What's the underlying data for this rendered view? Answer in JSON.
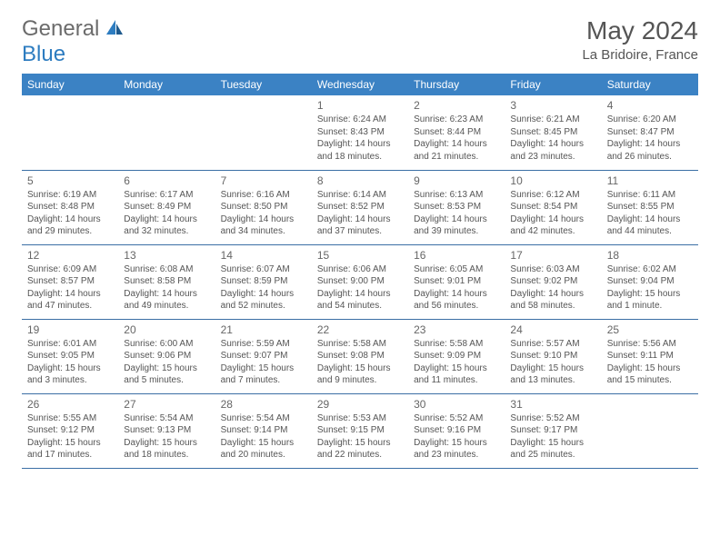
{
  "brand": {
    "text1": "General",
    "text2": "Blue"
  },
  "title": {
    "month": "May 2024",
    "location": "La Bridoire, France"
  },
  "colors": {
    "header_bg": "#3b82c4",
    "header_text": "#ffffff",
    "row_border": "#3b6fa5",
    "text_muted": "#555555",
    "logo_gray": "#6b6b6b",
    "logo_blue": "#2d7cc0",
    "page_bg": "#ffffff"
  },
  "weekdays": [
    "Sunday",
    "Monday",
    "Tuesday",
    "Wednesday",
    "Thursday",
    "Friday",
    "Saturday"
  ],
  "weeks": [
    [
      null,
      null,
      null,
      {
        "d": "1",
        "sr": "6:24 AM",
        "ss": "8:43 PM",
        "dl": "14 hours and 18 minutes."
      },
      {
        "d": "2",
        "sr": "6:23 AM",
        "ss": "8:44 PM",
        "dl": "14 hours and 21 minutes."
      },
      {
        "d": "3",
        "sr": "6:21 AM",
        "ss": "8:45 PM",
        "dl": "14 hours and 23 minutes."
      },
      {
        "d": "4",
        "sr": "6:20 AM",
        "ss": "8:47 PM",
        "dl": "14 hours and 26 minutes."
      }
    ],
    [
      {
        "d": "5",
        "sr": "6:19 AM",
        "ss": "8:48 PM",
        "dl": "14 hours and 29 minutes."
      },
      {
        "d": "6",
        "sr": "6:17 AM",
        "ss": "8:49 PM",
        "dl": "14 hours and 32 minutes."
      },
      {
        "d": "7",
        "sr": "6:16 AM",
        "ss": "8:50 PM",
        "dl": "14 hours and 34 minutes."
      },
      {
        "d": "8",
        "sr": "6:14 AM",
        "ss": "8:52 PM",
        "dl": "14 hours and 37 minutes."
      },
      {
        "d": "9",
        "sr": "6:13 AM",
        "ss": "8:53 PM",
        "dl": "14 hours and 39 minutes."
      },
      {
        "d": "10",
        "sr": "6:12 AM",
        "ss": "8:54 PM",
        "dl": "14 hours and 42 minutes."
      },
      {
        "d": "11",
        "sr": "6:11 AM",
        "ss": "8:55 PM",
        "dl": "14 hours and 44 minutes."
      }
    ],
    [
      {
        "d": "12",
        "sr": "6:09 AM",
        "ss": "8:57 PM",
        "dl": "14 hours and 47 minutes."
      },
      {
        "d": "13",
        "sr": "6:08 AM",
        "ss": "8:58 PM",
        "dl": "14 hours and 49 minutes."
      },
      {
        "d": "14",
        "sr": "6:07 AM",
        "ss": "8:59 PM",
        "dl": "14 hours and 52 minutes."
      },
      {
        "d": "15",
        "sr": "6:06 AM",
        "ss": "9:00 PM",
        "dl": "14 hours and 54 minutes."
      },
      {
        "d": "16",
        "sr": "6:05 AM",
        "ss": "9:01 PM",
        "dl": "14 hours and 56 minutes."
      },
      {
        "d": "17",
        "sr": "6:03 AM",
        "ss": "9:02 PM",
        "dl": "14 hours and 58 minutes."
      },
      {
        "d": "18",
        "sr": "6:02 AM",
        "ss": "9:04 PM",
        "dl": "15 hours and 1 minute."
      }
    ],
    [
      {
        "d": "19",
        "sr": "6:01 AM",
        "ss": "9:05 PM",
        "dl": "15 hours and 3 minutes."
      },
      {
        "d": "20",
        "sr": "6:00 AM",
        "ss": "9:06 PM",
        "dl": "15 hours and 5 minutes."
      },
      {
        "d": "21",
        "sr": "5:59 AM",
        "ss": "9:07 PM",
        "dl": "15 hours and 7 minutes."
      },
      {
        "d": "22",
        "sr": "5:58 AM",
        "ss": "9:08 PM",
        "dl": "15 hours and 9 minutes."
      },
      {
        "d": "23",
        "sr": "5:58 AM",
        "ss": "9:09 PM",
        "dl": "15 hours and 11 minutes."
      },
      {
        "d": "24",
        "sr": "5:57 AM",
        "ss": "9:10 PM",
        "dl": "15 hours and 13 minutes."
      },
      {
        "d": "25",
        "sr": "5:56 AM",
        "ss": "9:11 PM",
        "dl": "15 hours and 15 minutes."
      }
    ],
    [
      {
        "d": "26",
        "sr": "5:55 AM",
        "ss": "9:12 PM",
        "dl": "15 hours and 17 minutes."
      },
      {
        "d": "27",
        "sr": "5:54 AM",
        "ss": "9:13 PM",
        "dl": "15 hours and 18 minutes."
      },
      {
        "d": "28",
        "sr": "5:54 AM",
        "ss": "9:14 PM",
        "dl": "15 hours and 20 minutes."
      },
      {
        "d": "29",
        "sr": "5:53 AM",
        "ss": "9:15 PM",
        "dl": "15 hours and 22 minutes."
      },
      {
        "d": "30",
        "sr": "5:52 AM",
        "ss": "9:16 PM",
        "dl": "15 hours and 23 minutes."
      },
      {
        "d": "31",
        "sr": "5:52 AM",
        "ss": "9:17 PM",
        "dl": "15 hours and 25 minutes."
      },
      null
    ]
  ],
  "labels": {
    "sunrise": "Sunrise:",
    "sunset": "Sunset:",
    "daylight": "Daylight:"
  }
}
